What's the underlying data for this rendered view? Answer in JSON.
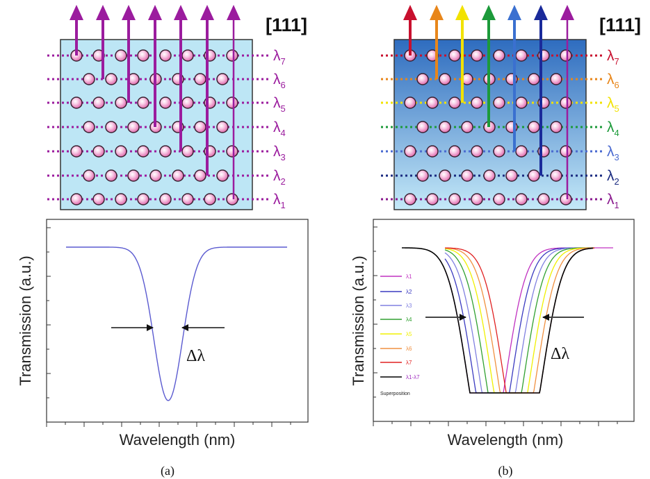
{
  "panels": [
    {
      "id": "a",
      "caption": "(a)",
      "direction_label": "[111]",
      "lattice_fill": "#bde6f5",
      "row_labels": [
        {
          "symbol": "λ",
          "sub": "7",
          "color": "#9b1c9e"
        },
        {
          "symbol": "λ",
          "sub": "6",
          "color": "#9b1c9e"
        },
        {
          "symbol": "λ",
          "sub": "5",
          "color": "#9b1c9e"
        },
        {
          "symbol": "λ",
          "sub": "4",
          "color": "#9b1c9e"
        },
        {
          "symbol": "λ",
          "sub": "3",
          "color": "#9b1c9e"
        },
        {
          "symbol": "λ",
          "sub": "2",
          "color": "#9b1c9e"
        },
        {
          "symbol": "λ",
          "sub": "1",
          "color": "#9b1c9e"
        }
      ],
      "arrow_colors": [
        "#9b1c9e",
        "#9b1c9e",
        "#9b1c9e",
        "#9b1c9e",
        "#9b1c9e",
        "#9b1c9e",
        "#9b1c9e"
      ],
      "plot": {
        "ylabel": "Transmission (a.u.)",
        "xlabel": "Wavelength (nm)",
        "width_label": "Δλ"
      }
    },
    {
      "id": "b",
      "caption": "(b)",
      "direction_label": "[111]",
      "lattice_fill_top": "#2e6cbf",
      "lattice_fill_bottom": "#c4e9f8",
      "row_labels": [
        {
          "symbol": "λ",
          "sub": "7",
          "color": "#c8102e"
        },
        {
          "symbol": "λ",
          "sub": "6",
          "color": "#e8861a"
        },
        {
          "symbol": "λ",
          "sub": "5",
          "color": "#f2e200"
        },
        {
          "symbol": "λ",
          "sub": "4",
          "color": "#1c9a3a"
        },
        {
          "symbol": "λ",
          "sub": "3",
          "color": "#4a6ad0"
        },
        {
          "symbol": "λ",
          "sub": "2",
          "color": "#1a2a80"
        },
        {
          "symbol": "λ",
          "sub": "1",
          "color": "#8a1a8e"
        }
      ],
      "arrow_colors": [
        "#c8102e",
        "#e8861a",
        "#f2e200",
        "#1c9a3a",
        "#3a70d0",
        "#1a2a9a",
        "#9b1c9e"
      ],
      "plot": {
        "ylabel": "Transmission (a.u.)",
        "xlabel": "Wavelength (nm)",
        "width_label": "Δλ",
        "legend": [
          {
            "label": "λ1",
            "color": "#c030c0"
          },
          {
            "label": "λ2",
            "color": "#3a3ac0"
          },
          {
            "label": "λ3",
            "color": "#8080e0"
          },
          {
            "label": "λ4",
            "color": "#30a030"
          },
          {
            "label": "λ5",
            "color": "#f0f000"
          },
          {
            "label": "λ6",
            "color": "#f09040"
          },
          {
            "label": "λ7",
            "color": "#e02020"
          },
          {
            "label": "λ1-λ7",
            "color": "#000000"
          }
        ],
        "legend_note": "Superposition"
      }
    }
  ],
  "chart_data": [
    {
      "type": "line",
      "title": "",
      "xlabel": "Wavelength (nm)",
      "ylabel": "Transmission (a.u.)",
      "series": [
        {
          "color": "#5a5ad0",
          "dip_center": 6.4,
          "baseline": 1.0,
          "minimum": 0.12
        }
      ]
    },
    {
      "type": "line",
      "title": "",
      "xlabel": "Wavelength (nm)",
      "ylabel": "Transmission (a.u.)",
      "series": [
        {
          "name": "λ1",
          "color": "#c030c0",
          "dip_center": 6.7
        },
        {
          "name": "λ2",
          "color": "#3a3ac0",
          "dip_center": 7.0
        },
        {
          "name": "λ3",
          "color": "#8080e0",
          "dip_center": 7.3
        },
        {
          "name": "λ4",
          "color": "#30a030",
          "dip_center": 7.6
        },
        {
          "name": "λ5",
          "color": "#f0f000",
          "dip_center": 7.9
        },
        {
          "name": "λ6",
          "color": "#f09040",
          "dip_center": 8.2
        },
        {
          "name": "λ7",
          "color": "#e02020",
          "dip_center": 8.5
        },
        {
          "name": "λ1-λ7 Superposition",
          "color": "#000000"
        }
      ]
    }
  ]
}
